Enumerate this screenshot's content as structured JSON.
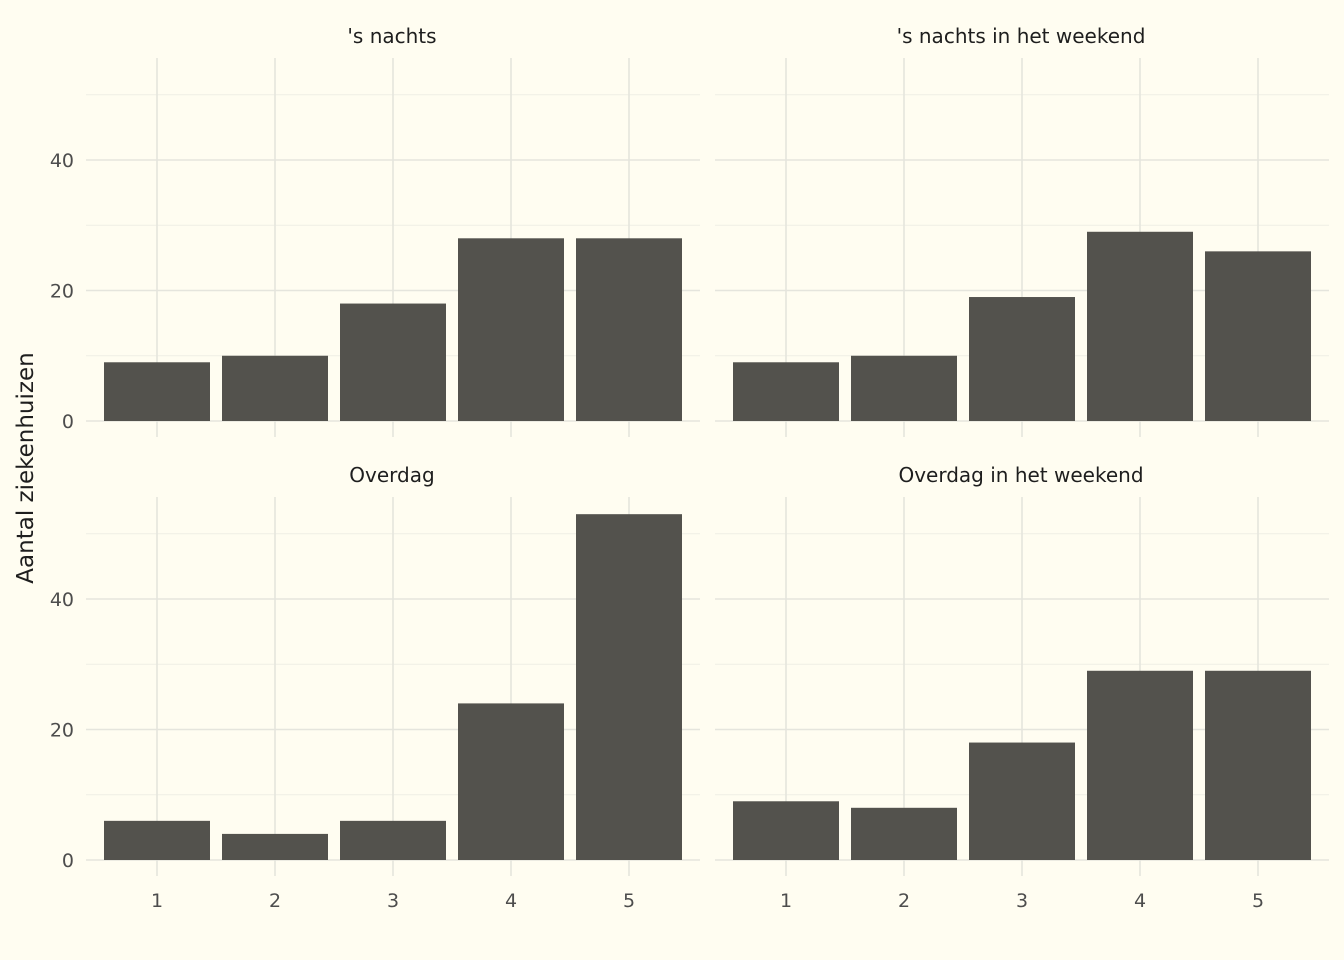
{
  "chart_data": {
    "type": "bar",
    "ylabel": "Aantal ziekenhuizen",
    "xlabel": "",
    "categories": [
      "1",
      "2",
      "3",
      "4",
      "5"
    ],
    "ylim": [
      0,
      56
    ],
    "yticks": [
      0,
      20,
      40
    ],
    "grid": true,
    "colors": {
      "background": "#fffdf1",
      "bar": "#53524d",
      "grid": "#e5e5dd"
    },
    "facets": [
      {
        "title": "'s nachts",
        "values": [
          9,
          10,
          18,
          28,
          28
        ]
      },
      {
        "title": "'s nachts in het weekend",
        "values": [
          9,
          10,
          19,
          29,
          26
        ]
      },
      {
        "title": "Overdag",
        "values": [
          6,
          4,
          6,
          24,
          53
        ]
      },
      {
        "title": "Overdag in het weekend",
        "values": [
          9,
          8,
          18,
          29,
          29
        ]
      }
    ]
  }
}
